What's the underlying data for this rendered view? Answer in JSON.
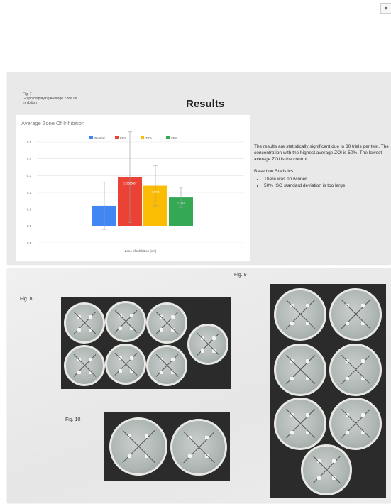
{
  "corner_icon": "chevron-down-icon",
  "slide1": {
    "fig_caption_line1": "Fig. 7",
    "fig_caption_line2": "Graph displaying Average Zone Of",
    "fig_caption_line3": "Inhibition",
    "title": "Results",
    "paragraph": "The results are statistically significant due to 30 trials per test. The concentration with the highest average ZOI is 50%. The lowest average ZOI is the control.",
    "stats_heading": "Based on Statistics:",
    "bullets": [
      "There was no winner",
      "50% ISO standard deviation is too large"
    ]
  },
  "chart_data": {
    "type": "bar",
    "title": "Average Zone Of Inhibition",
    "xlabel": "Zone of Inhibition (cm)",
    "ylabel": "",
    "ylim": [
      -0.1,
      0.5
    ],
    "yticks": [
      "0.5",
      "0.4",
      "0.3",
      "0.2",
      "0.1",
      "0.0",
      "-0.1"
    ],
    "grid": true,
    "legend_position": "top",
    "series": [
      {
        "name": "Control",
        "value": 0.12,
        "error": 0.14,
        "color": "#4285f4",
        "label": "0.12333333"
      },
      {
        "name": "50%",
        "value": 0.29,
        "error": 0.27,
        "color": "#ea4335",
        "label": "0.29666667"
      },
      {
        "name": "70%",
        "value": 0.24,
        "error": 0.12,
        "color": "#fbbc04",
        "label": "0.2433"
      },
      {
        "name": "90%",
        "value": 0.17,
        "error": 0.06,
        "color": "#34a853",
        "label": "0.1733"
      }
    ]
  },
  "slide2": {
    "fig8": "Fig. 8",
    "fig9": "Fig. 9",
    "fig10": "Fig. 10"
  }
}
